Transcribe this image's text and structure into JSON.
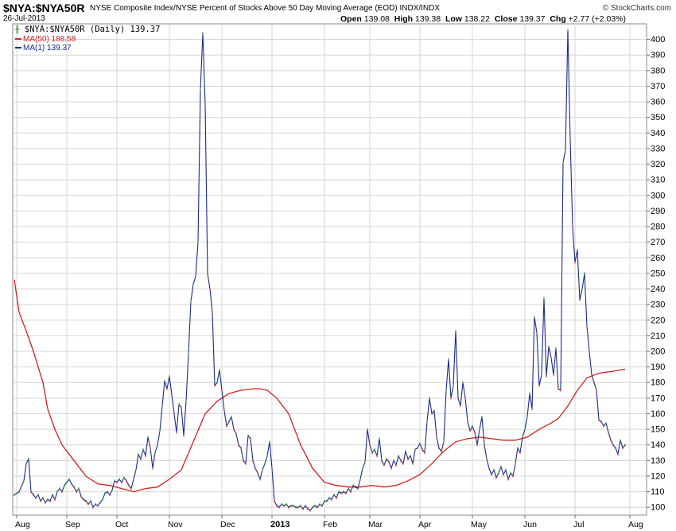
{
  "header": {
    "ticker": "$NYA:$NYA50R",
    "description": "NYSE Composite Index/NYSE Percent of Stocks Above 50 Day Moving Average (EOD)",
    "exchange": "INDX/INDX",
    "brand": "© StockCharts.com",
    "date": "26-Jul-2013",
    "open_label": "Open",
    "open": "139.08",
    "high_label": "High",
    "high": "139.38",
    "low_label": "Low",
    "low": "138.22",
    "close_label": "Close",
    "close": "139.37",
    "chg_label": "Chg",
    "chg": "+2.77 (+2.03%)"
  },
  "legend": {
    "main": "$NYA:$NYA50R (Daily) 139.37",
    "ma50": "MA(50) 188.58",
    "ma1": "MA(1) 139.37"
  },
  "colors": {
    "price_line": "#1a2a8c",
    "ma50_line": "#d42020",
    "up_tick": "#1a8a1a",
    "down_tick": "#c01818",
    "grid": "#d4d4d4"
  },
  "chart_data": {
    "type": "line",
    "y_axis_position": "right",
    "ylim": [
      95,
      410
    ],
    "y_ticks": [
      100,
      110,
      120,
      130,
      140,
      150,
      160,
      170,
      180,
      190,
      200,
      210,
      220,
      230,
      240,
      250,
      260,
      270,
      280,
      290,
      300,
      310,
      320,
      330,
      340,
      350,
      360,
      370,
      380,
      390,
      400
    ],
    "x_tick_labels": [
      "Aug",
      "Sep",
      "Oct",
      "Nov",
      "Dec",
      "2013",
      "Feb",
      "Mar",
      "Apr",
      "May",
      "Jun",
      "Jul",
      "Aug"
    ],
    "x_tick_positions": [
      1,
      22,
      43,
      65,
      87,
      108,
      130,
      149,
      170,
      192,
      214,
      235,
      258
    ],
    "x_range": [
      0,
      265
    ],
    "grid": true,
    "series": [
      {
        "name": "MA(1)",
        "points": [
          [
            0,
            108
          ],
          [
            2,
            110
          ],
          [
            4,
            117
          ],
          [
            5,
            128
          ],
          [
            6,
            131
          ],
          [
            7,
            110
          ],
          [
            8,
            108
          ],
          [
            9,
            106
          ],
          [
            10,
            108
          ],
          [
            11,
            104
          ],
          [
            12,
            106
          ],
          [
            13,
            103
          ],
          [
            14,
            105
          ],
          [
            15,
            104
          ],
          [
            16,
            108
          ],
          [
            17,
            105
          ],
          [
            18,
            110
          ],
          [
            19,
            112
          ],
          [
            20,
            110
          ],
          [
            21,
            114
          ],
          [
            22,
            116
          ],
          [
            23,
            118
          ],
          [
            24,
            115
          ],
          [
            25,
            113
          ],
          [
            26,
            110
          ],
          [
            27,
            112
          ],
          [
            28,
            107
          ],
          [
            29,
            105
          ],
          [
            30,
            104
          ],
          [
            31,
            102
          ],
          [
            32,
            104
          ],
          [
            33,
            100
          ],
          [
            34,
            102
          ],
          [
            35,
            101
          ],
          [
            36,
            103
          ],
          [
            37,
            105
          ],
          [
            38,
            109
          ],
          [
            39,
            110
          ],
          [
            40,
            108
          ],
          [
            41,
            111
          ],
          [
            42,
            117
          ],
          [
            43,
            116
          ],
          [
            44,
            118
          ],
          [
            45,
            116
          ],
          [
            46,
            119
          ],
          [
            47,
            117
          ],
          [
            48,
            114
          ],
          [
            49,
            112
          ],
          [
            50,
            118
          ],
          [
            51,
            124
          ],
          [
            52,
            134
          ],
          [
            53,
            131
          ],
          [
            54,
            137
          ],
          [
            55,
            133
          ],
          [
            56,
            145
          ],
          [
            57,
            138
          ],
          [
            58,
            125
          ],
          [
            59,
            135
          ],
          [
            60,
            140
          ],
          [
            61,
            149
          ],
          [
            62,
            165
          ],
          [
            63,
            181
          ],
          [
            64,
            176
          ],
          [
            65,
            184
          ],
          [
            66,
            172
          ],
          [
            67,
            160
          ],
          [
            68,
            148
          ],
          [
            69,
            166
          ],
          [
            70,
            164
          ],
          [
            71,
            146
          ],
          [
            72,
            168
          ],
          [
            73,
            199
          ],
          [
            74,
            232
          ],
          [
            75,
            243
          ],
          [
            76,
            248
          ],
          [
            77,
            270
          ],
          [
            78,
            368
          ],
          [
            79,
            404
          ],
          [
            80,
            358
          ],
          [
            81,
            250
          ],
          [
            82,
            240
          ],
          [
            83,
            225
          ],
          [
            84,
            178
          ],
          [
            85,
            180
          ],
          [
            86,
            188
          ],
          [
            87,
            175
          ],
          [
            88,
            162
          ],
          [
            89,
            152
          ],
          [
            90,
            155
          ],
          [
            91,
            158
          ],
          [
            92,
            150
          ],
          [
            93,
            147
          ],
          [
            94,
            140
          ],
          [
            95,
            138
          ],
          [
            96,
            130
          ],
          [
            97,
            128
          ],
          [
            98,
            146
          ],
          [
            99,
            144
          ],
          [
            100,
            130
          ],
          [
            101,
            125
          ],
          [
            102,
            122
          ],
          [
            103,
            118
          ],
          [
            104,
            124
          ],
          [
            105,
            128
          ],
          [
            106,
            133
          ],
          [
            107,
            142
          ],
          [
            108,
            125
          ],
          [
            109,
            104
          ],
          [
            110,
            101
          ],
          [
            111,
            100
          ],
          [
            112,
            102
          ],
          [
            113,
            101
          ],
          [
            114,
            102
          ],
          [
            115,
            100
          ],
          [
            116,
            101
          ],
          [
            117,
            101
          ],
          [
            118,
            100
          ],
          [
            119,
            100
          ],
          [
            120,
            101
          ],
          [
            121,
            99
          ],
          [
            122,
            101
          ],
          [
            123,
            99
          ],
          [
            124,
            98
          ],
          [
            125,
            100
          ],
          [
            126,
            101
          ],
          [
            127,
            100
          ],
          [
            128,
            102
          ],
          [
            129,
            101
          ],
          [
            130,
            104
          ],
          [
            131,
            104
          ],
          [
            132,
            106
          ],
          [
            133,
            105
          ],
          [
            134,
            108
          ],
          [
            135,
            106
          ],
          [
            136,
            110
          ],
          [
            137,
            109
          ],
          [
            138,
            110
          ],
          [
            139,
            109
          ],
          [
            140,
            112
          ],
          [
            141,
            110
          ],
          [
            142,
            114
          ],
          [
            143,
            113
          ],
          [
            144,
            112
          ],
          [
            145,
            118
          ],
          [
            146,
            125
          ],
          [
            147,
            129
          ],
          [
            148,
            150
          ],
          [
            149,
            140
          ],
          [
            150,
            135
          ],
          [
            151,
            137
          ],
          [
            152,
            133
          ],
          [
            153,
            144
          ],
          [
            154,
            130
          ],
          [
            155,
            127
          ],
          [
            156,
            131
          ],
          [
            157,
            129
          ],
          [
            158,
            125
          ],
          [
            159,
            130
          ],
          [
            160,
            127
          ],
          [
            161,
            133
          ],
          [
            162,
            130
          ],
          [
            163,
            128
          ],
          [
            164,
            136
          ],
          [
            165,
            131
          ],
          [
            166,
            133
          ],
          [
            167,
            128
          ],
          [
            168,
            137
          ],
          [
            169,
            138
          ],
          [
            170,
            141
          ],
          [
            171,
            137
          ],
          [
            172,
            135
          ],
          [
            173,
            155
          ],
          [
            174,
            170
          ],
          [
            175,
            160
          ],
          [
            176,
            162
          ],
          [
            177,
            145
          ],
          [
            178,
            138
          ],
          [
            179,
            136
          ],
          [
            180,
            142
          ],
          [
            181,
            175
          ],
          [
            182,
            195
          ],
          [
            183,
            170
          ],
          [
            184,
            178
          ],
          [
            185,
            213
          ],
          [
            186,
            170
          ],
          [
            187,
            165
          ],
          [
            188,
            180
          ],
          [
            189,
            170
          ],
          [
            190,
            155
          ],
          [
            191,
            149
          ],
          [
            192,
            152
          ],
          [
            193,
            148
          ],
          [
            194,
            140
          ],
          [
            195,
            150
          ],
          [
            196,
            158
          ],
          [
            197,
            140
          ],
          [
            198,
            131
          ],
          [
            199,
            125
          ],
          [
            200,
            121
          ],
          [
            201,
            124
          ],
          [
            202,
            119
          ],
          [
            203,
            122
          ],
          [
            204,
            126
          ],
          [
            205,
            121
          ],
          [
            206,
            124
          ],
          [
            207,
            118
          ],
          [
            208,
            122
          ],
          [
            209,
            120
          ],
          [
            210,
            128
          ],
          [
            211,
            138
          ],
          [
            212,
            135
          ],
          [
            213,
            145
          ],
          [
            214,
            150
          ],
          [
            215,
            158
          ],
          [
            216,
            173
          ],
          [
            217,
            163
          ],
          [
            218,
            222
          ],
          [
            219,
            212
          ],
          [
            220,
            178
          ],
          [
            221,
            185
          ],
          [
            222,
            234
          ],
          [
            223,
            184
          ],
          [
            224,
            203
          ],
          [
            225,
            196
          ],
          [
            226,
            185
          ],
          [
            227,
            202
          ],
          [
            228,
            176
          ],
          [
            229,
            175
          ],
          [
            230,
            321
          ],
          [
            231,
            329
          ],
          [
            232,
            406
          ],
          [
            233,
            336
          ],
          [
            234,
            280
          ],
          [
            235,
            257
          ],
          [
            236,
            265
          ],
          [
            237,
            233
          ],
          [
            238,
            240
          ],
          [
            239,
            250
          ],
          [
            240,
            216
          ],
          [
            241,
            200
          ],
          [
            242,
            185
          ],
          [
            243,
            180
          ],
          [
            244,
            175
          ],
          [
            245,
            156
          ],
          [
            246,
            155
          ],
          [
            247,
            152
          ],
          [
            248,
            154
          ],
          [
            249,
            148
          ],
          [
            250,
            143
          ],
          [
            251,
            140
          ],
          [
            252,
            138
          ],
          [
            253,
            134
          ],
          [
            254,
            143
          ],
          [
            255,
            138
          ],
          [
            256,
            140
          ]
        ]
      },
      {
        "name": "MA(50)",
        "points": [
          [
            0,
            246
          ],
          [
            2,
            225
          ],
          [
            5,
            213
          ],
          [
            8,
            200
          ],
          [
            12,
            180
          ],
          [
            14,
            163
          ],
          [
            17,
            150
          ],
          [
            20,
            140
          ],
          [
            25,
            130
          ],
          [
            30,
            120
          ],
          [
            35,
            115
          ],
          [
            40,
            114
          ],
          [
            45,
            112
          ],
          [
            50,
            110
          ],
          [
            55,
            112
          ],
          [
            60,
            113
          ],
          [
            65,
            118
          ],
          [
            70,
            124
          ],
          [
            75,
            142
          ],
          [
            80,
            160
          ],
          [
            85,
            168
          ],
          [
            90,
            173
          ],
          [
            95,
            175
          ],
          [
            100,
            176
          ],
          [
            103,
            176
          ],
          [
            106,
            175
          ],
          [
            110,
            170
          ],
          [
            115,
            160
          ],
          [
            120,
            140
          ],
          [
            125,
            125
          ],
          [
            130,
            116
          ],
          [
            135,
            114
          ],
          [
            140,
            113
          ],
          [
            145,
            113
          ],
          [
            150,
            114
          ],
          [
            155,
            113
          ],
          [
            160,
            114
          ],
          [
            165,
            117
          ],
          [
            170,
            121
          ],
          [
            175,
            128
          ],
          [
            180,
            136
          ],
          [
            185,
            142
          ],
          [
            190,
            144
          ],
          [
            195,
            145
          ],
          [
            200,
            144
          ],
          [
            205,
            143
          ],
          [
            210,
            143
          ],
          [
            215,
            145
          ],
          [
            220,
            150
          ],
          [
            225,
            154
          ],
          [
            228,
            157
          ],
          [
            232,
            165
          ],
          [
            236,
            175
          ],
          [
            240,
            183
          ],
          [
            245,
            186
          ],
          [
            250,
            187
          ],
          [
            256,
            188.58
          ]
        ]
      }
    ]
  }
}
